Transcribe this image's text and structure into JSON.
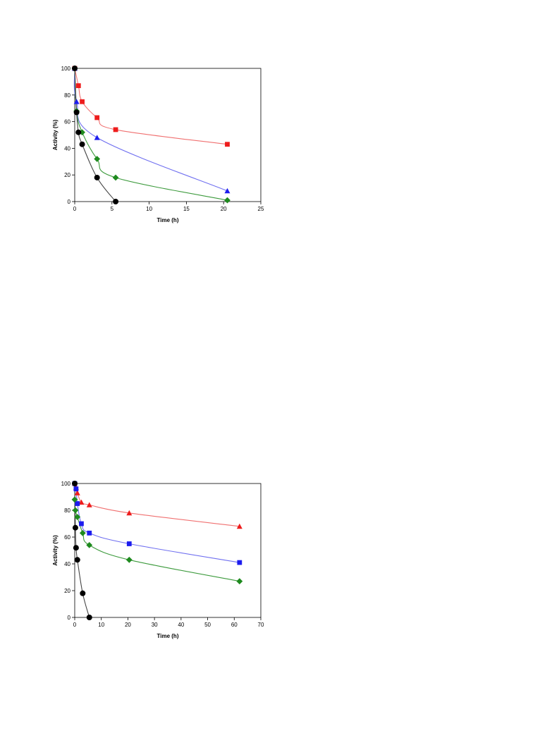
{
  "chart_data": [
    {
      "type": "scatter",
      "xlabel": "Time (h)",
      "ylabel": "Activity (%)",
      "xlim": [
        0,
        25
      ],
      "ylim": [
        0,
        100
      ],
      "xticks": [
        0,
        5,
        10,
        15,
        20,
        25
      ],
      "yticks": [
        0,
        20,
        40,
        60,
        80,
        100
      ],
      "grid": false,
      "series": [
        {
          "marker": "square",
          "color": "#ee1c1c",
          "line_color": "#f07070",
          "x": [
            0,
            0.5,
            1,
            3,
            5.5,
            20.5
          ],
          "y": [
            100,
            87,
            75,
            63,
            54,
            43
          ]
        },
        {
          "marker": "triangle",
          "color": "#1c1cee",
          "line_color": "#7070f0",
          "x": [
            0,
            0.25,
            3,
            20.5
          ],
          "y": [
            100,
            75,
            48,
            8
          ]
        },
        {
          "marker": "diamond",
          "color": "#1e8a1e",
          "line_color": "#3c9a3c",
          "x": [
            0,
            0.25,
            1,
            3,
            5.5,
            20.5
          ],
          "y": [
            100,
            68,
            52,
            32,
            18,
            1
          ]
        },
        {
          "marker": "circle",
          "color": "#000000",
          "line_color": "#444444",
          "x": [
            0,
            0.25,
            0.5,
            1,
            3,
            5.5
          ],
          "y": [
            100,
            67,
            52,
            43,
            18,
            0
          ]
        }
      ]
    },
    {
      "type": "scatter",
      "xlabel": "Time (h)",
      "ylabel": "Activity (%)",
      "xlim": [
        0,
        70
      ],
      "ylim": [
        0,
        100
      ],
      "xticks": [
        0,
        10,
        20,
        30,
        40,
        50,
        60,
        70
      ],
      "yticks": [
        0,
        20,
        40,
        60,
        80,
        100
      ],
      "grid": false,
      "series": [
        {
          "marker": "triangle",
          "color": "#ee1c1c",
          "line_color": "#f07070",
          "x": [
            0,
            0.5,
            1,
            2.5,
            5.5,
            20.5,
            62
          ],
          "y": [
            100,
            97,
            93,
            86,
            84,
            78,
            68
          ]
        },
        {
          "marker": "square",
          "color": "#1c1cee",
          "line_color": "#7070f0",
          "x": [
            0,
            0.5,
            1,
            2.5,
            5.5,
            20.5,
            62
          ],
          "y": [
            100,
            96,
            85,
            70,
            63,
            55,
            41
          ]
        },
        {
          "marker": "diamond",
          "color": "#1e8a1e",
          "line_color": "#3c9a3c",
          "x": [
            0,
            0.25,
            1,
            3,
            5.5,
            20.5,
            62
          ],
          "y": [
            88,
            80,
            75,
            63,
            54,
            43,
            27
          ]
        },
        {
          "marker": "circle",
          "color": "#000000",
          "line_color": "#444444",
          "x": [
            0,
            0.25,
            0.5,
            1,
            3,
            5.5
          ],
          "y": [
            100,
            67,
            52,
            43,
            18,
            0
          ]
        }
      ]
    }
  ]
}
